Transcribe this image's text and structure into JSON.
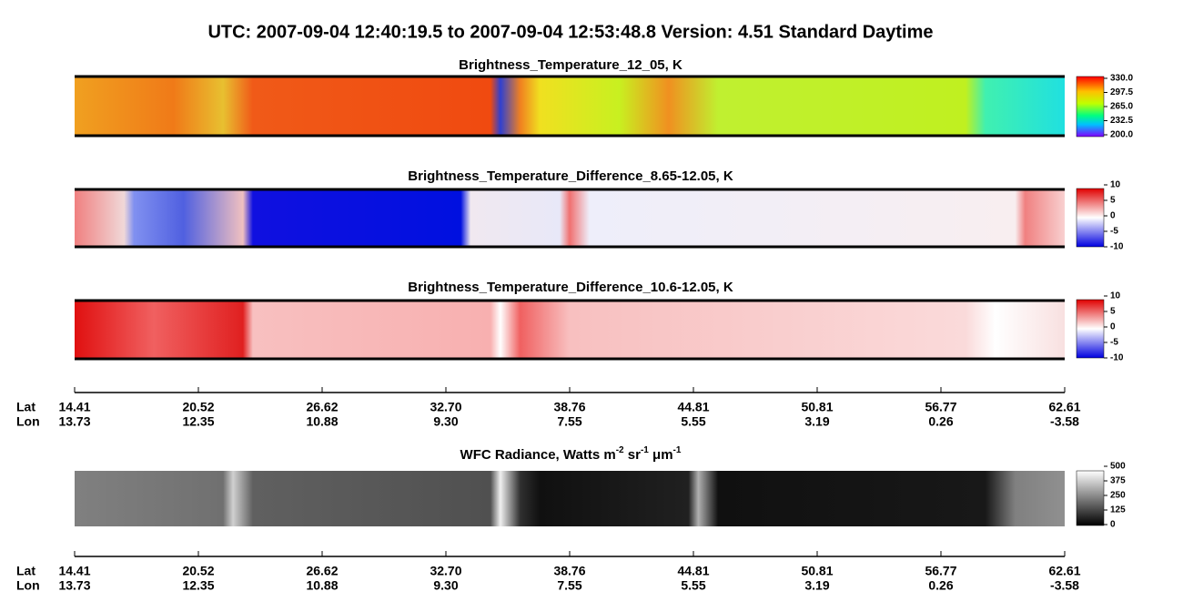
{
  "header": {
    "title": "UTC:  2007-09-04   12:40:19.5  to  2007-09-04   12:53:48.8    Version: 4.51  Standard Daytime"
  },
  "panels": [
    {
      "title_parts": [
        {
          "text": "Brightness_Temperature_12_05, K"
        }
      ],
      "colorbar": [
        "330.0",
        "297.5",
        "265.0",
        "232.5",
        "200.0"
      ]
    },
    {
      "title_parts": [
        {
          "text": "Brightness_Temperature_Difference_8.65-12.05, K"
        }
      ],
      "colorbar": [
        "10",
        "5",
        "0",
        "-5",
        "-10"
      ]
    },
    {
      "title_parts": [
        {
          "text": "Brightness_Temperature_Difference_10.6-12.05, K"
        }
      ],
      "colorbar": [
        "10",
        "5",
        "0",
        "-5",
        "-10"
      ]
    },
    {
      "title_parts": [
        {
          "text": "WFC Radiance, Watts m"
        },
        {
          "sup": "-2"
        },
        {
          "text": " sr"
        },
        {
          "sup": "-1"
        },
        {
          "text": " μm"
        },
        {
          "sup": "-1"
        }
      ],
      "colorbar": [
        "500",
        "375",
        "250",
        "125",
        "0"
      ]
    }
  ],
  "axes": [
    {
      "lat_label": "Lat",
      "lon_label": "Lon",
      "lat": [
        "14.41",
        "20.52",
        "26.62",
        "32.70",
        "38.76",
        "44.81",
        "50.81",
        "56.77",
        "62.61"
      ],
      "lon": [
        "13.73",
        "12.35",
        "10.88",
        "9.30",
        "7.55",
        "5.55",
        "3.19",
        "0.26",
        "-3.58"
      ]
    },
    {
      "lat_label": "Lat",
      "lon_label": "Lon",
      "lat": [
        "14.41",
        "20.52",
        "26.62",
        "32.70",
        "38.76",
        "44.81",
        "50.81",
        "56.77",
        "62.61"
      ],
      "lon": [
        "13.73",
        "12.35",
        "10.88",
        "9.30",
        "7.55",
        "5.55",
        "3.19",
        "0.26",
        "-3.58"
      ]
    }
  ]
}
